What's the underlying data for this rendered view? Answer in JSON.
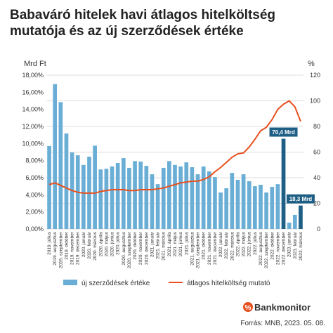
{
  "chart_data": {
    "type": "bar-line",
    "title": "Babaváró hitelek havi átlagos hitelköltség mutatója és az új szerződések értéke",
    "y_axis_title": "Mrd Ft",
    "y2_axis_title": "%",
    "categories": [
      "2019. július",
      "2019. augusztus",
      "2019. szeptember",
      "2019. október",
      "2019. november",
      "2019. december",
      "2020. január",
      "2020. február",
      "2020. március",
      "2020. április",
      "2020. május",
      "2020. június",
      "2020. július",
      "2020. augusztus",
      "2020. szeptember",
      "2020. október",
      "2020. november",
      "2020. december",
      "2021. január",
      "2021. február",
      "2021. március",
      "2021. április",
      "2021. május",
      "2021. június",
      "2021. július",
      "2021. augusztus",
      "2021. szeptember",
      "2021. október",
      "2021. november",
      "2021. december",
      "2022. január",
      "2022. február",
      "2022. március",
      "2022. április",
      "2022. május",
      "2022. június",
      "2022. július",
      "2022. augusztus",
      "2022. szeptember",
      "2022. október",
      "2022. november",
      "2022. december",
      "2023. január",
      "2023. február",
      "2023. március"
    ],
    "series": [
      {
        "name": "új szerződések értéke",
        "kind": "bar",
        "axis": "y2",
        "color": "#6aaed6",
        "highlight_color": "#1f5f86",
        "values": [
          64.7,
          113,
          99,
          74.5,
          59.7,
          57.5,
          50,
          56.4,
          65,
          46.5,
          47,
          48.8,
          51.5,
          55.3,
          47.7,
          53,
          52.6,
          49.3,
          42.7,
          35,
          47.7,
          53,
          50,
          48.8,
          52,
          48.2,
          42.7,
          48.8,
          45,
          40.5,
          28.5,
          31.8,
          43.8,
          38.4,
          42.7,
          37.3,
          33.4,
          34.5,
          28.5,
          32.9,
          35,
          70.4,
          5,
          11,
          18.3
        ],
        "highlight": [
          false,
          false,
          false,
          false,
          false,
          false,
          false,
          false,
          false,
          false,
          false,
          false,
          false,
          false,
          false,
          false,
          false,
          false,
          false,
          false,
          false,
          false,
          false,
          false,
          false,
          false,
          false,
          false,
          false,
          false,
          false,
          false,
          false,
          false,
          false,
          false,
          false,
          false,
          false,
          false,
          false,
          true,
          false,
          false,
          true
        ],
        "value_labels": [
          null,
          null,
          null,
          null,
          null,
          null,
          null,
          null,
          null,
          null,
          null,
          null,
          null,
          null,
          null,
          null,
          null,
          null,
          null,
          null,
          null,
          null,
          null,
          null,
          null,
          null,
          null,
          null,
          null,
          null,
          null,
          null,
          null,
          null,
          null,
          null,
          null,
          null,
          null,
          null,
          null,
          "70,4 Mrd",
          null,
          null,
          "18,3 Mrd"
        ]
      },
      {
        "name": "átlagos hitelköltség mutató",
        "kind": "line",
        "axis": "y",
        "color": "#e8501e",
        "values": [
          5.2,
          5.4,
          5.1,
          4.8,
          4.5,
          4.3,
          4.2,
          4.2,
          4.2,
          4.4,
          4.5,
          4.6,
          4.6,
          4.6,
          4.5,
          4.5,
          4.6,
          4.6,
          4.6,
          4.7,
          4.8,
          5.0,
          5.2,
          5.4,
          5.5,
          5.6,
          5.6,
          5.8,
          6.1,
          6.7,
          7.2,
          7.8,
          8.4,
          8.8,
          8.9,
          9.6,
          10.5,
          11.5,
          11.9,
          12.8,
          14.0,
          14.6,
          15.0,
          14.3,
          12.6
        ]
      }
    ],
    "ylim": [
      0,
      18
    ],
    "yticks": [
      {
        "value": 0,
        "label": "0,00%"
      },
      {
        "value": 2,
        "label": "2,00%"
      },
      {
        "value": 4,
        "label": "4,00%"
      },
      {
        "value": 6,
        "label": "6,00%"
      },
      {
        "value": 8,
        "label": "8,00%"
      },
      {
        "value": 10,
        "label": "10,00%"
      },
      {
        "value": 12,
        "label": "12,00%"
      },
      {
        "value": 14,
        "label": "14,00%"
      },
      {
        "value": 16,
        "label": "16,00%"
      },
      {
        "value": 18,
        "label": "18,00%"
      }
    ],
    "y2lim": [
      0,
      120
    ],
    "y2ticks": [
      0,
      20,
      40,
      60,
      80,
      100,
      120
    ],
    "grid": true
  },
  "footer": {
    "logo": "Bankmonitor",
    "source": "Forrás: MNB, 2023. 05. 08."
  }
}
